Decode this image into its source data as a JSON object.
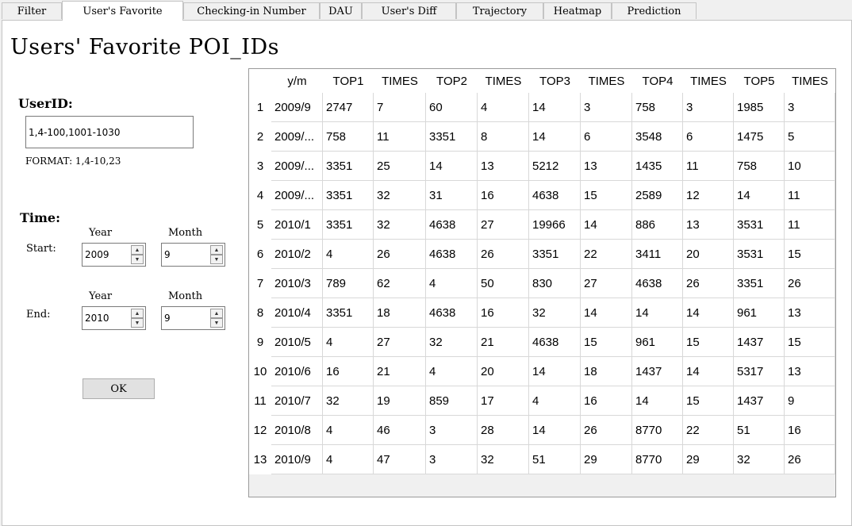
{
  "tabs": [
    "Filter",
    "User's Favorite",
    "Checking-in Number",
    "DAU",
    "User's Diff",
    "Trajectory",
    "Heatmap",
    "Prediction"
  ],
  "active_tab": 1,
  "page_title": "Users' Favorite POI_IDs",
  "form": {
    "userid_label": "UserID:",
    "userid_value": "1,4-100,1001-1030",
    "format_hint": "FORMAT: 1,4-10,23",
    "time_label": "Time:",
    "start_label": "Start:",
    "end_label": "End:",
    "year_label": "Year",
    "month_label": "Month",
    "start_year": "2009",
    "start_month": "9",
    "end_year": "2010",
    "end_month": "9",
    "ok_label": "OK"
  },
  "table": {
    "headers": [
      "y/m",
      "TOP1",
      "TIMES",
      "TOP2",
      "TIMES",
      "TOP3",
      "TIMES",
      "TOP4",
      "TIMES",
      "TOP5",
      "TIMES"
    ],
    "row_numbers": [
      "1",
      "2",
      "3",
      "4",
      "5",
      "6",
      "7",
      "8",
      "9",
      "10",
      "11",
      "12",
      "13"
    ],
    "rows": [
      [
        "2009/9",
        "2747",
        "7",
        "60",
        "4",
        "14",
        "3",
        "758",
        "3",
        "1985",
        "3"
      ],
      [
        "2009/...",
        "758",
        "11",
        "3351",
        "8",
        "14",
        "6",
        "3548",
        "6",
        "1475",
        "5"
      ],
      [
        "2009/...",
        "3351",
        "25",
        "14",
        "13",
        "5212",
        "13",
        "1435",
        "11",
        "758",
        "10"
      ],
      [
        "2009/...",
        "3351",
        "32",
        "31",
        "16",
        "4638",
        "15",
        "2589",
        "12",
        "14",
        "11"
      ],
      [
        "2010/1",
        "3351",
        "32",
        "4638",
        "27",
        "19966",
        "14",
        "886",
        "13",
        "3531",
        "11"
      ],
      [
        "2010/2",
        "4",
        "26",
        "4638",
        "26",
        "3351",
        "22",
        "3411",
        "20",
        "3531",
        "15"
      ],
      [
        "2010/3",
        "789",
        "62",
        "4",
        "50",
        "830",
        "27",
        "4638",
        "26",
        "3351",
        "26"
      ],
      [
        "2010/4",
        "3351",
        "18",
        "4638",
        "16",
        "32",
        "14",
        "14",
        "14",
        "961",
        "13"
      ],
      [
        "2010/5",
        "4",
        "27",
        "32",
        "21",
        "4638",
        "15",
        "961",
        "15",
        "1437",
        "15"
      ],
      [
        "2010/6",
        "16",
        "21",
        "4",
        "20",
        "14",
        "18",
        "1437",
        "14",
        "5317",
        "13"
      ],
      [
        "2010/7",
        "32",
        "19",
        "859",
        "17",
        "4",
        "16",
        "14",
        "15",
        "1437",
        "9"
      ],
      [
        "2010/8",
        "4",
        "46",
        "3",
        "28",
        "14",
        "26",
        "8770",
        "22",
        "51",
        "16"
      ],
      [
        "2010/9",
        "4",
        "47",
        "3",
        "32",
        "51",
        "29",
        "8770",
        "29",
        "32",
        "26"
      ]
    ]
  }
}
